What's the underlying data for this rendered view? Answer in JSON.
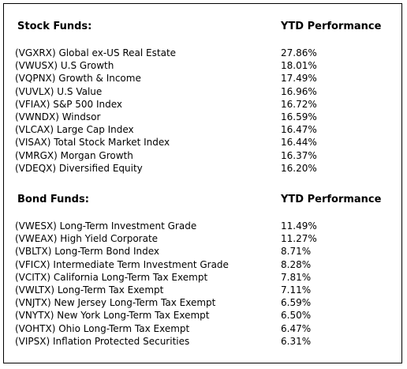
{
  "stock_funds": {
    "header": "Stock Funds:",
    "perf_header": "YTD Performance",
    "rows": [
      {
        "name": "(VGXRX) Global ex-US Real Estate",
        "ytd": "27.86%"
      },
      {
        "name": "(VWUSX) U.S Growth",
        "ytd": "18.01%"
      },
      {
        "name": "(VQPNX) Growth & Income",
        "ytd": "17.49%"
      },
      {
        "name": "(VUVLX) U.S Value",
        "ytd": "16.96%"
      },
      {
        "name": "(VFIAX) S&P 500 Index",
        "ytd": "16.72%"
      },
      {
        "name": "(VWNDX) Windsor",
        "ytd": "16.59%"
      },
      {
        "name": "(VLCAX) Large Cap Index",
        "ytd": "16.47%"
      },
      {
        "name": "(VISAX) Total Stock Market Index",
        "ytd": "16.44%"
      },
      {
        "name": "(VMRGX) Morgan Growth",
        "ytd": "16.37%"
      },
      {
        "name": "(VDEQX) Diversified Equity",
        "ytd": "16.20%"
      }
    ]
  },
  "bond_funds": {
    "header": "Bond Funds:",
    "perf_header": "YTD Performance",
    "rows": [
      {
        "name": "(VWESX) Long-Term Investment Grade",
        "ytd": "11.49%"
      },
      {
        "name": "(VWEAX) High Yield Corporate",
        "ytd": "11.27%"
      },
      {
        "name": "(VBLTX) Long-Term Bond Index",
        "ytd": "8.71%"
      },
      {
        "name": "(VFICX) Intermediate Term Investment Grade",
        "ytd": "8.28%"
      },
      {
        "name": "(VCITX) California Long-Term Tax Exempt",
        "ytd": "7.81%"
      },
      {
        "name": "(VWLTX) Long-Term Tax Exempt",
        "ytd": "7.11%"
      },
      {
        "name": "(VNJTX) New Jersey Long-Term Tax Exempt",
        "ytd": "6.59%"
      },
      {
        "name": "(VNYTX) New York Long-Term Tax Exempt",
        "ytd": "6.50%"
      },
      {
        "name": "(VOHTX) Ohio Long-Term Tax Exempt",
        "ytd": "6.47%"
      },
      {
        "name": "(VIPSX) Inflation Protected Securities",
        "ytd": "6.31%"
      }
    ]
  }
}
